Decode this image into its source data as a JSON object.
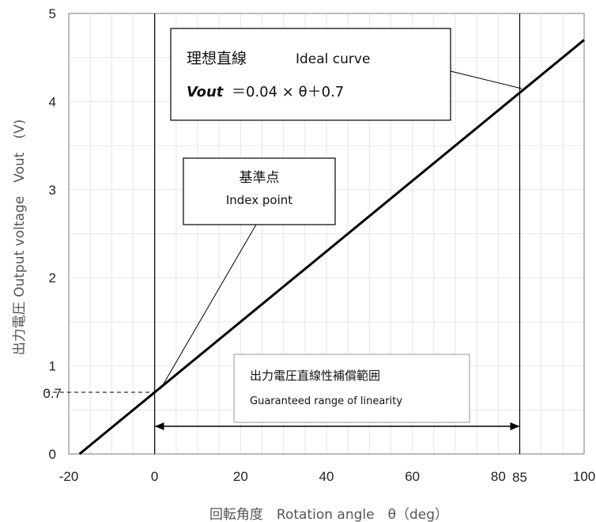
{
  "chart_data": {
    "type": "line",
    "xlabel": "回転角度　Rotation angle　θ（deg）",
    "ylabel": "出力電圧 Output voltage　Vout　(V)",
    "xlim": [
      -20,
      100
    ],
    "ylim": [
      0,
      5
    ],
    "x_ticks": [
      "-20",
      "0",
      "20",
      "40",
      "60",
      "80",
      "100"
    ],
    "y_ticks": [
      "0",
      "1",
      "2",
      "3",
      "4",
      "5"
    ],
    "grid": true,
    "series": [
      {
        "values": [
          [
            -17.5,
            0
          ],
          [
            100,
            4.7
          ]
        ]
      }
    ],
    "extra_labels": {
      "x_85": "85",
      "y_07": "0.7"
    },
    "reference_lines": {
      "vertical_x": [
        0,
        85
      ],
      "horizontal_y": 0.7
    },
    "annotations": {
      "ideal": {
        "title_jp": "理想直線",
        "title_en": "Ideal curve",
        "formula_var": "Vout",
        "formula_rest": "＝0.04 × θ＋0.7"
      },
      "index": {
        "jp": "基準点",
        "en": "Index point"
      },
      "range": {
        "jp": "出力電圧直線性補償範囲",
        "en": "Guaranteed range of linearity"
      }
    },
    "colors": {
      "grid": "#e6e6e6",
      "line": "#000000"
    }
  }
}
